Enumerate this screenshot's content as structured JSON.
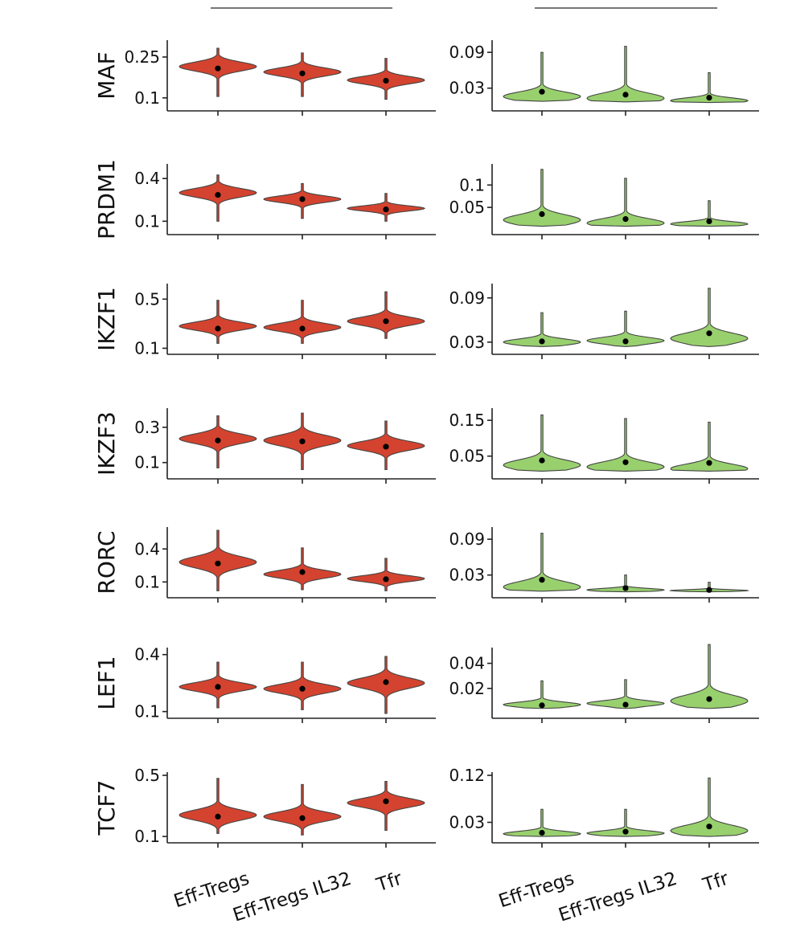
{
  "colors": {
    "left_fill": "#d4432f",
    "right_fill": "#98d06e",
    "outline": "#444444",
    "dot": "#000000",
    "axis": "#222222"
  },
  "categories": [
    "Eff-Tregs",
    "Eff-Tregs IL32",
    "Tfr"
  ],
  "chart_data": [
    {
      "type": "violin",
      "panel": "left",
      "gene": "MAF",
      "categories": [
        "Eff-Tregs",
        "Eff-Tregs IL32",
        "Tfr"
      ],
      "ylim": [
        0.07,
        0.3
      ],
      "yticks": [
        "0.25",
        "0.1"
      ],
      "ytick_values": [
        0.25,
        0.1
      ],
      "series": [
        {
          "category": "Eff-Tregs",
          "mean": 0.208,
          "min": 0.105,
          "max": 0.282,
          "mode": 0.215
        },
        {
          "category": "Eff-Tregs IL32",
          "mean": 0.19,
          "min": 0.105,
          "max": 0.265,
          "mode": 0.195
        },
        {
          "category": "Tfr",
          "mean": 0.163,
          "min": 0.095,
          "max": 0.245,
          "mode": 0.165
        }
      ]
    },
    {
      "type": "violin",
      "panel": "right",
      "gene": "MAF",
      "categories": [
        "Eff-Tregs",
        "Eff-Tregs IL32",
        "Tfr"
      ],
      "ylim": [
        0.0,
        0.105
      ],
      "yticks": [
        "0.09",
        "0.03"
      ],
      "ytick_values": [
        0.09,
        0.03
      ],
      "series": [
        {
          "category": "Eff-Tregs",
          "mean": 0.024,
          "min": 0.008,
          "max": 0.09,
          "mode": 0.016
        },
        {
          "category": "Eff-Tregs IL32",
          "mean": 0.019,
          "min": 0.007,
          "max": 0.1,
          "mode": 0.013
        },
        {
          "category": "Tfr",
          "mean": 0.014,
          "min": 0.006,
          "max": 0.056,
          "mode": 0.009
        }
      ]
    },
    {
      "type": "violin",
      "panel": "left",
      "gene": "PRDM1",
      "categories": [
        "Eff-Tregs",
        "Eff-Tregs IL32",
        "Tfr"
      ],
      "ylim": [
        0.04,
        0.48
      ],
      "yticks": [
        "0.4",
        "0.1"
      ],
      "ytick_values": [
        0.4,
        0.1
      ],
      "series": [
        {
          "category": "Eff-Tregs",
          "mean": 0.285,
          "min": 0.1,
          "max": 0.425,
          "mode": 0.3
        },
        {
          "category": "Eff-Tregs IL32",
          "mean": 0.255,
          "min": 0.12,
          "max": 0.365,
          "mode": 0.255
        },
        {
          "category": "Tfr",
          "mean": 0.183,
          "min": 0.1,
          "max": 0.295,
          "mode": 0.19
        }
      ]
    },
    {
      "type": "violin",
      "panel": "right",
      "gene": "PRDM1",
      "categories": [
        "Eff-Tregs",
        "Eff-Tregs IL32",
        "Tfr"
      ],
      "ylim": [
        0.0,
        0.14
      ],
      "yticks": [
        "0.1",
        "0.05"
      ],
      "ytick_values": [
        0.1,
        0.05
      ],
      "series": [
        {
          "category": "Eff-Tregs",
          "mean": 0.035,
          "min": 0.008,
          "max": 0.135,
          "mode": 0.022
        },
        {
          "category": "Eff-Tregs IL32",
          "mean": 0.024,
          "min": 0.008,
          "max": 0.115,
          "mode": 0.015
        },
        {
          "category": "Tfr",
          "mean": 0.019,
          "min": 0.008,
          "max": 0.065,
          "mode": 0.013
        }
      ]
    },
    {
      "type": "violin",
      "panel": "left",
      "gene": "IKZF1",
      "categories": [
        "Eff-Tregs",
        "Eff-Tregs IL32",
        "Tfr"
      ],
      "ylim": [
        0.09,
        0.6
      ],
      "yticks": [
        "0.5",
        "0.1"
      ],
      "ytick_values": [
        0.5,
        0.1
      ],
      "series": [
        {
          "category": "Eff-Tregs",
          "mean": 0.26,
          "min": 0.14,
          "max": 0.49,
          "mode": 0.28
        },
        {
          "category": "Eff-Tregs IL32",
          "mean": 0.26,
          "min": 0.14,
          "max": 0.49,
          "mode": 0.27
        },
        {
          "category": "Tfr",
          "mean": 0.32,
          "min": 0.18,
          "max": 0.56,
          "mode": 0.32
        }
      ]
    },
    {
      "type": "violin",
      "panel": "right",
      "gene": "IKZF1",
      "categories": [
        "Eff-Tregs",
        "Eff-Tregs IL32",
        "Tfr"
      ],
      "ylim": [
        0.02,
        0.105
      ],
      "yticks": [
        "0.09",
        "0.03"
      ],
      "ytick_values": [
        0.09,
        0.03
      ],
      "series": [
        {
          "category": "Eff-Tregs",
          "mean": 0.031,
          "min": 0.024,
          "max": 0.07,
          "mode": 0.03
        },
        {
          "category": "Eff-Tregs IL32",
          "mean": 0.031,
          "min": 0.024,
          "max": 0.072,
          "mode": 0.032
        },
        {
          "category": "Tfr",
          "mean": 0.042,
          "min": 0.024,
          "max": 0.103,
          "mode": 0.035
        }
      ]
    },
    {
      "type": "violin",
      "panel": "left",
      "gene": "IKZF3",
      "categories": [
        "Eff-Tregs",
        "Eff-Tregs IL32",
        "Tfr"
      ],
      "ylim": [
        0.035,
        0.39
      ],
      "yticks": [
        "0.3",
        "0.1"
      ],
      "ytick_values": [
        0.3,
        0.1
      ],
      "series": [
        {
          "category": "Eff-Tregs",
          "mean": 0.225,
          "min": 0.07,
          "max": 0.365,
          "mode": 0.235
        },
        {
          "category": "Eff-Tregs IL32",
          "mean": 0.22,
          "min": 0.06,
          "max": 0.38,
          "mode": 0.225
        },
        {
          "category": "Tfr",
          "mean": 0.19,
          "min": 0.06,
          "max": 0.335,
          "mode": 0.195
        }
      ]
    },
    {
      "type": "violin",
      "panel": "right",
      "gene": "IKZF3",
      "categories": [
        "Eff-Tregs",
        "Eff-Tregs IL32",
        "Tfr"
      ],
      "ylim": [
        0.0,
        0.175
      ],
      "yticks": [
        "0.15",
        "0.05"
      ],
      "ytick_values": [
        0.15,
        0.05
      ],
      "series": [
        {
          "category": "Eff-Tregs",
          "mean": 0.038,
          "min": 0.008,
          "max": 0.165,
          "mode": 0.025
        },
        {
          "category": "Eff-Tregs IL32",
          "mean": 0.033,
          "min": 0.008,
          "max": 0.155,
          "mode": 0.02
        },
        {
          "category": "Tfr",
          "mean": 0.031,
          "min": 0.008,
          "max": 0.145,
          "mode": 0.015
        }
      ]
    },
    {
      "type": "violin",
      "panel": "left",
      "gene": "RORC",
      "categories": [
        "Eff-Tregs",
        "Eff-Tregs IL32",
        "Tfr"
      ],
      "ylim": [
        0.0,
        0.57
      ],
      "yticks": [
        "0.4",
        "0.1"
      ],
      "ytick_values": [
        0.4,
        0.1
      ],
      "series": [
        {
          "category": "Eff-Tregs",
          "mean": 0.268,
          "min": 0.02,
          "max": 0.57,
          "mode": 0.28
        },
        {
          "category": "Eff-Tregs IL32",
          "mean": 0.19,
          "min": 0.03,
          "max": 0.41,
          "mode": 0.17
        },
        {
          "category": "Tfr",
          "mean": 0.125,
          "min": 0.02,
          "max": 0.315,
          "mode": 0.13
        }
      ]
    },
    {
      "type": "violin",
      "panel": "right",
      "gene": "RORC",
      "categories": [
        "Eff-Tregs",
        "Eff-Tregs IL32",
        "Tfr"
      ],
      "ylim": [
        0.0,
        0.105
      ],
      "yticks": [
        "0.09",
        "0.03"
      ],
      "ytick_values": [
        0.09,
        0.03
      ],
      "series": [
        {
          "category": "Eff-Tregs",
          "mean": 0.022,
          "min": 0.003,
          "max": 0.1,
          "mode": 0.01
        },
        {
          "category": "Eff-Tregs IL32",
          "mean": 0.008,
          "min": 0.002,
          "max": 0.03,
          "mode": 0.005
        },
        {
          "category": "Tfr",
          "mean": 0.005,
          "min": 0.002,
          "max": 0.018,
          "mode": 0.004
        }
      ]
    },
    {
      "type": "violin",
      "panel": "left",
      "gene": "LEF1",
      "categories": [
        "Eff-Tregs",
        "Eff-Tregs IL32",
        "Tfr"
      ],
      "ylim": [
        0.09,
        0.42
      ],
      "yticks": [
        "0.4",
        "0.1"
      ],
      "ytick_values": [
        0.4,
        0.1
      ],
      "series": [
        {
          "category": "Eff-Tregs",
          "mean": 0.23,
          "min": 0.12,
          "max": 0.36,
          "mode": 0.23
        },
        {
          "category": "Eff-Tregs IL32",
          "mean": 0.22,
          "min": 0.11,
          "max": 0.36,
          "mode": 0.22
        },
        {
          "category": "Tfr",
          "mean": 0.255,
          "min": 0.09,
          "max": 0.39,
          "mode": 0.25
        }
      ]
    },
    {
      "type": "violin",
      "panel": "right",
      "gene": "LEF1",
      "categories": [
        "Eff-Tregs",
        "Eff-Tregs IL32",
        "Tfr"
      ],
      "ylim": [
        0.0,
        0.05
      ],
      "yticks": [
        "0.04",
        "0.02"
      ],
      "ytick_values": [
        0.04,
        0.02
      ],
      "series": [
        {
          "category": "Eff-Tregs",
          "mean": 0.0065,
          "min": 0.004,
          "max": 0.026,
          "mode": 0.007
        },
        {
          "category": "Eff-Tregs IL32",
          "mean": 0.007,
          "min": 0.004,
          "max": 0.027,
          "mode": 0.008
        },
        {
          "category": "Tfr",
          "mean": 0.0115,
          "min": 0.004,
          "max": 0.055,
          "mode": 0.01
        }
      ]
    },
    {
      "type": "violin",
      "panel": "left",
      "gene": "TCF7",
      "categories": [
        "Eff-Tregs",
        "Eff-Tregs IL32",
        "Tfr"
      ],
      "ylim": [
        0.09,
        0.5
      ],
      "yticks": [
        "0.5",
        "0.1"
      ],
      "ytick_values": [
        0.5,
        0.1
      ],
      "series": [
        {
          "category": "Eff-Tregs",
          "mean": 0.23,
          "min": 0.12,
          "max": 0.48,
          "mode": 0.24
        },
        {
          "category": "Eff-Tregs IL32",
          "mean": 0.22,
          "min": 0.11,
          "max": 0.44,
          "mode": 0.23
        },
        {
          "category": "Tfr",
          "mean": 0.33,
          "min": 0.14,
          "max": 0.46,
          "mode": 0.32
        }
      ]
    },
    {
      "type": "violin",
      "panel": "right",
      "gene": "TCF7",
      "categories": [
        "Eff-Tregs",
        "Eff-Tregs IL32",
        "Tfr"
      ],
      "ylim": [
        0.0,
        0.12
      ],
      "yticks": [
        "0.12",
        "0.03"
      ],
      "ytick_values": [
        0.12,
        0.03
      ],
      "series": [
        {
          "category": "Eff-Tregs",
          "mean": 0.01,
          "min": 0.003,
          "max": 0.055,
          "mode": 0.008
        },
        {
          "category": "Eff-Tregs IL32",
          "mean": 0.012,
          "min": 0.003,
          "max": 0.055,
          "mode": 0.009
        },
        {
          "category": "Tfr",
          "mean": 0.022,
          "min": 0.003,
          "max": 0.115,
          "mode": 0.014
        }
      ]
    }
  ]
}
